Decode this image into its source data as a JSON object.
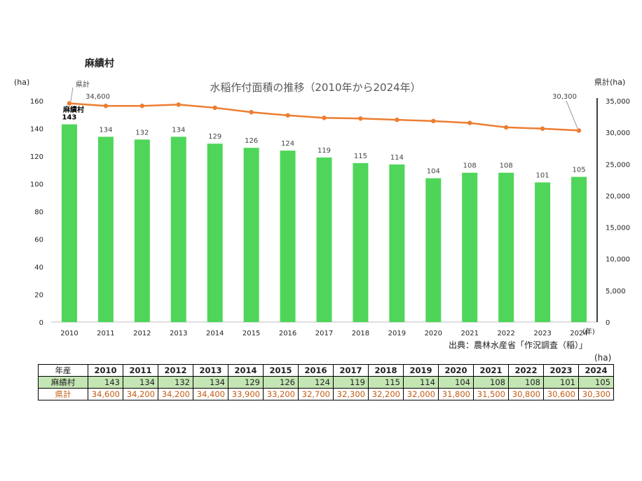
{
  "page": {
    "town_label": "麻績村",
    "source": "出典：農林水産省「作況調査（稲）」",
    "table_unit": "(ha)"
  },
  "chart_data": {
    "type": "bar+line",
    "title": "水稲作付面積の推移（2010年から2024年）",
    "left_axis_unit": "(ha)",
    "right_axis_unit": "県計(ha)",
    "x_axis_unit": "(年)",
    "categories": [
      "2010",
      "2011",
      "2012",
      "2013",
      "2014",
      "2015",
      "2016",
      "2017",
      "2018",
      "2019",
      "2020",
      "2021",
      "2022",
      "2023",
      "2024"
    ],
    "left_ylim": [
      0,
      160
    ],
    "left_ticks": [
      0,
      20,
      40,
      60,
      80,
      100,
      120,
      140,
      160
    ],
    "right_ylim": [
      0,
      35000
    ],
    "right_ticks": [
      "0",
      "5,000",
      "10,000",
      "15,000",
      "20,000",
      "25,000",
      "30,000",
      "35,000"
    ],
    "right_tick_values": [
      0,
      5000,
      10000,
      15000,
      20000,
      25000,
      30000,
      35000
    ],
    "bar_color": "#4fd65a",
    "line_color": "#ed7d31",
    "series": [
      {
        "name": "麻績村",
        "type": "bar",
        "axis": "left",
        "values": [
          143,
          134,
          132,
          134,
          129,
          126,
          124,
          119,
          115,
          114,
          104,
          108,
          108,
          101,
          105
        ]
      },
      {
        "name": "県計",
        "type": "line",
        "axis": "right",
        "values": [
          34600,
          34200,
          34200,
          34400,
          33900,
          33200,
          32700,
          32300,
          32200,
          32000,
          31800,
          31500,
          30800,
          30600,
          30300
        ]
      }
    ],
    "annotations": {
      "bar_series_label": "麻績村",
      "line_series_label": "県計",
      "line_first_label": "34,600",
      "line_last_label": "30,300"
    }
  },
  "table": {
    "header_label": "年産",
    "years": [
      "2010",
      "2011",
      "2012",
      "2013",
      "2014",
      "2015",
      "2016",
      "2017",
      "2018",
      "2019",
      "2020",
      "2021",
      "2022",
      "2023",
      "2024"
    ],
    "town_label": "麻績村",
    "town_values": [
      "143",
      "134",
      "132",
      "134",
      "129",
      "126",
      "124",
      "119",
      "115",
      "114",
      "104",
      "108",
      "108",
      "101",
      "105"
    ],
    "pref_label": "県計",
    "pref_values": [
      "34,600",
      "34,200",
      "34,200",
      "34,400",
      "33,900",
      "33,200",
      "32,700",
      "32,300",
      "32,200",
      "32,000",
      "31,800",
      "31,500",
      "30,800",
      "30,600",
      "30,300"
    ]
  }
}
